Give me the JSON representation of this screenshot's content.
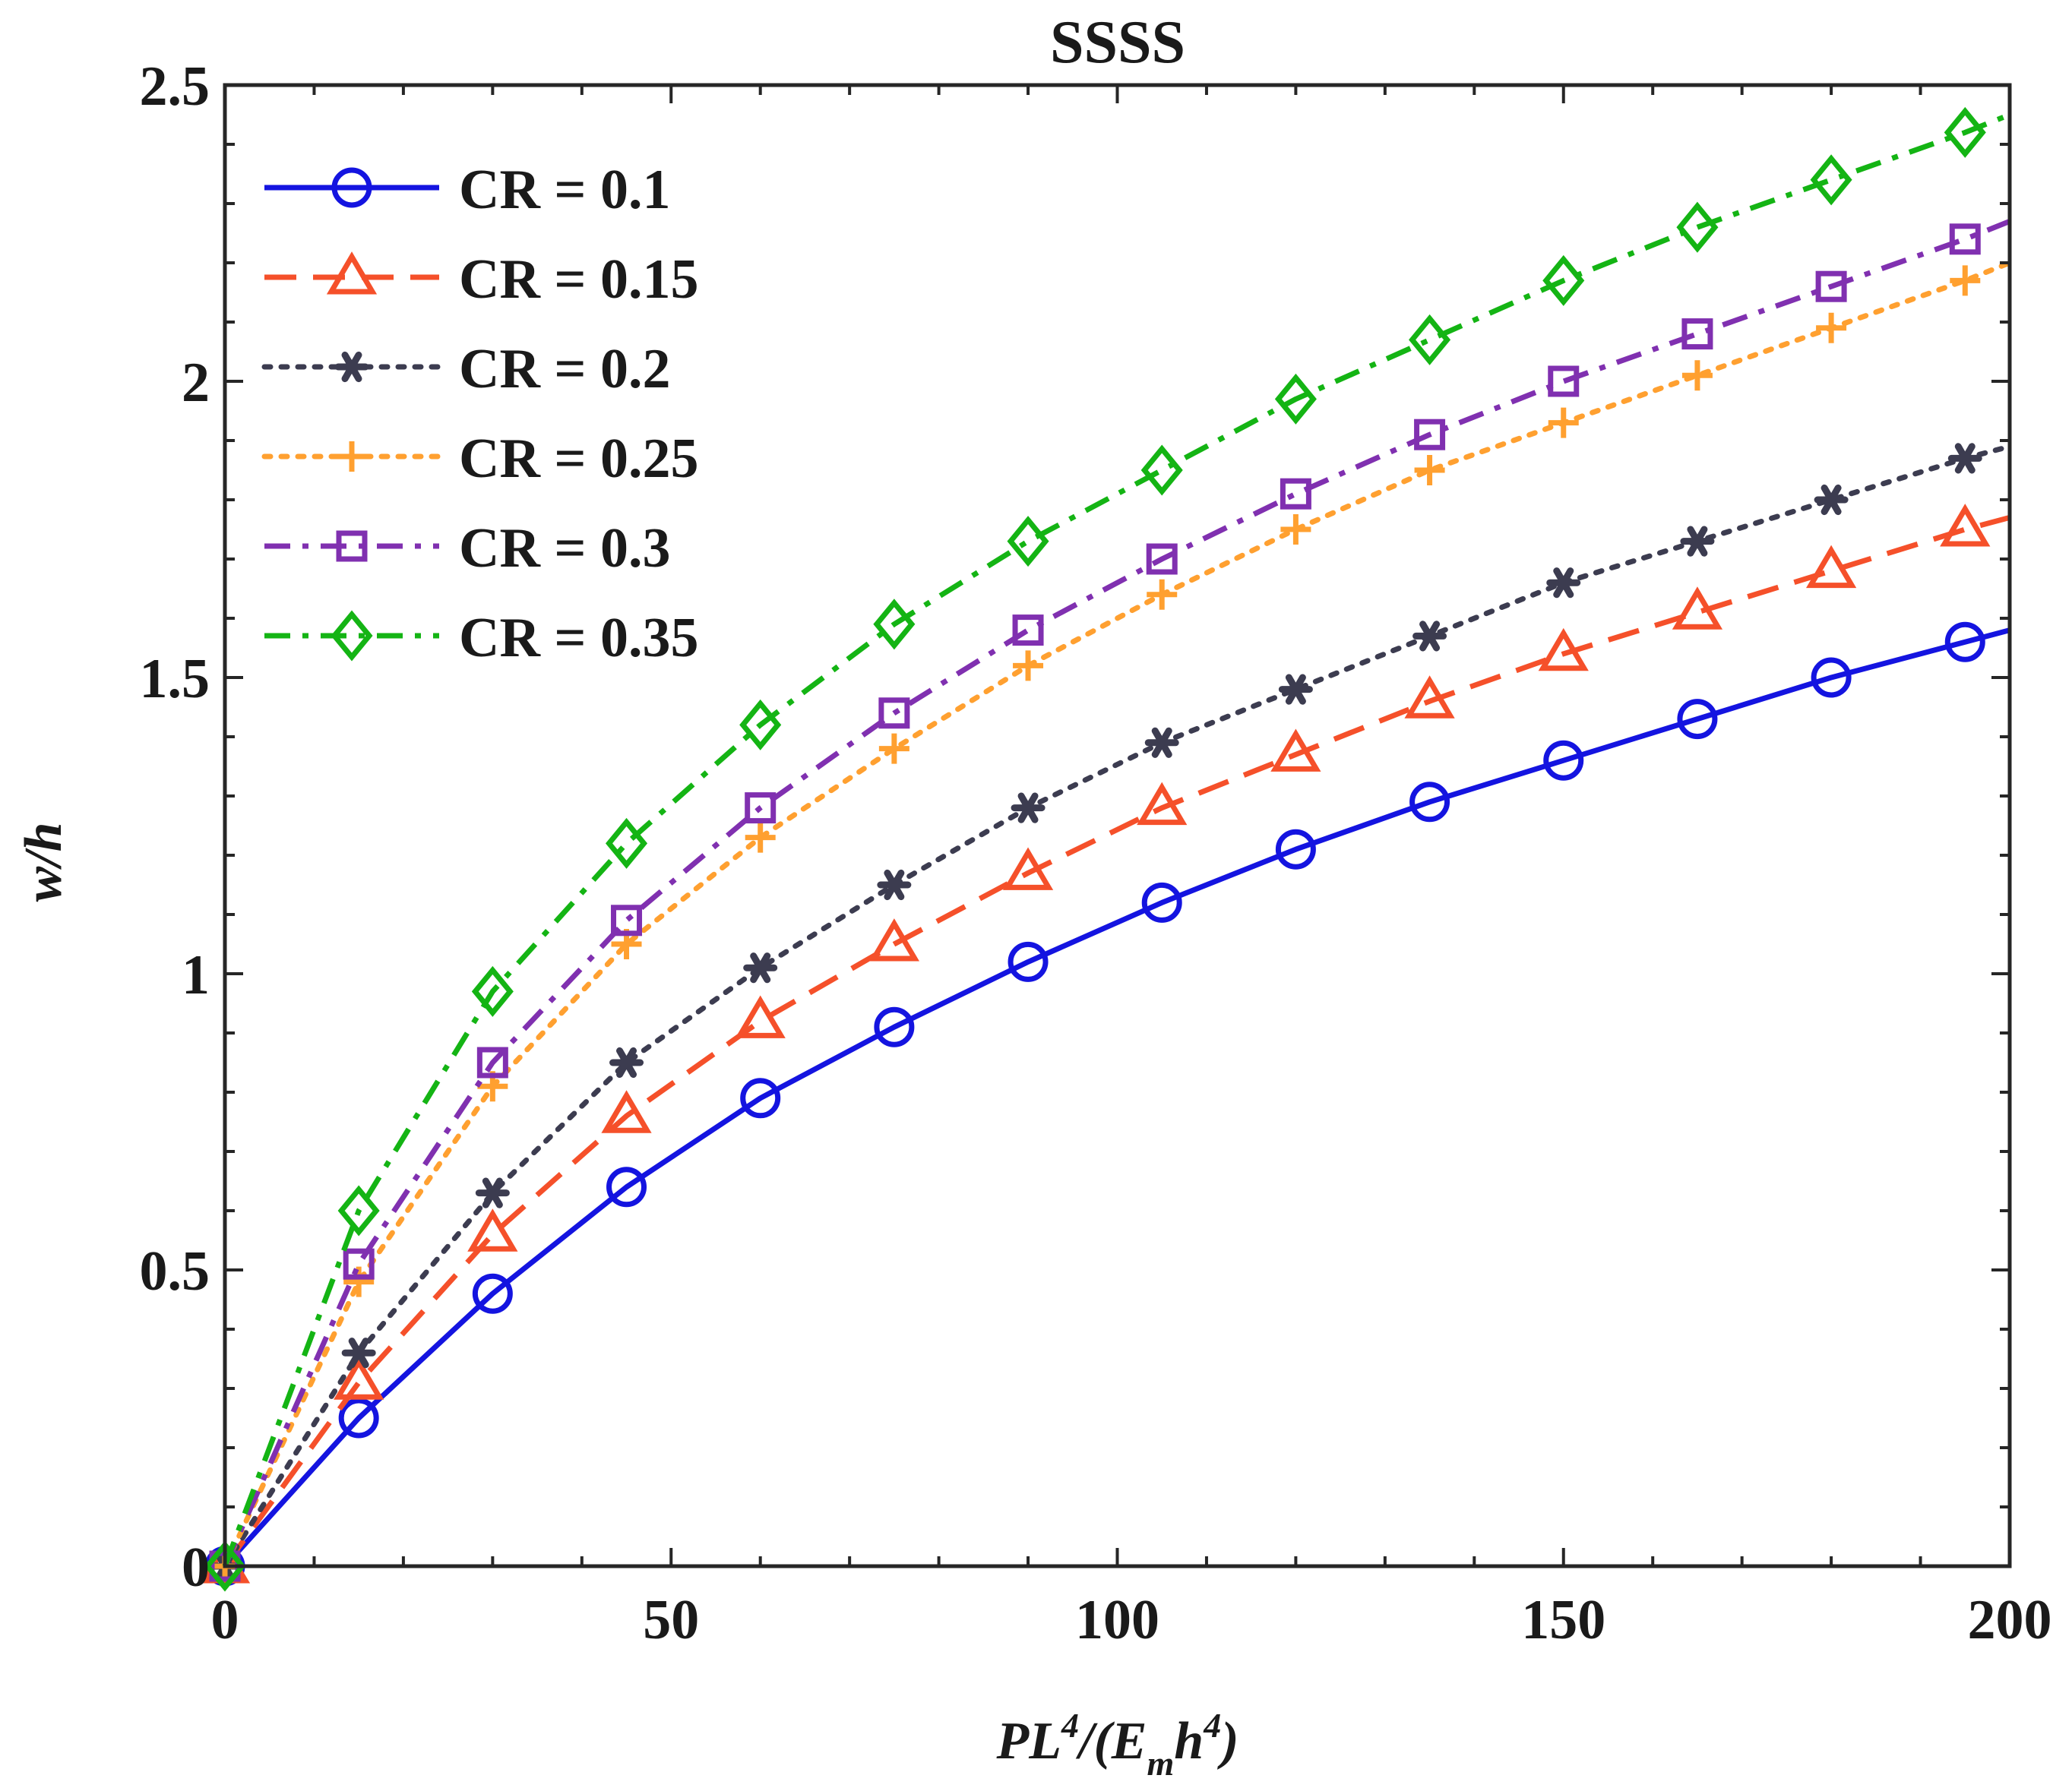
{
  "chart_data": {
    "type": "line",
    "title": "SSSS",
    "xlabel": "PL4/(Emh4)",
    "xlabel_parts": {
      "a": "PL",
      "b": "4",
      "c": "/(E",
      "d": "m",
      "e": "h",
      "f": "4",
      "g": ")"
    },
    "ylabel": "w/h",
    "xlim": [
      0,
      200
    ],
    "ylim": [
      0,
      2.5
    ],
    "xticks": [
      0,
      50,
      100,
      150,
      200
    ],
    "yticks": [
      0,
      0.5,
      1,
      1.5,
      2,
      2.5
    ],
    "xtick_labels": [
      "0",
      "50",
      "100",
      "150",
      "200"
    ],
    "ytick_labels": [
      "0",
      "0.5",
      "1",
      "1.5",
      "2",
      "2.5"
    ],
    "legend_position": "top-left",
    "x": [
      0,
      15,
      30,
      45,
      60,
      75,
      90,
      105,
      120,
      135,
      150,
      165,
      180,
      195
    ],
    "series": [
      {
        "name": "CR = 0.1",
        "color": "#1414e0",
        "marker": "circle",
        "dash": "solid",
        "values": [
          0,
          0.25,
          0.46,
          0.64,
          0.79,
          0.91,
          1.02,
          1.12,
          1.21,
          1.29,
          1.36,
          1.43,
          1.5,
          1.56
        ],
        "end": 1.58
      },
      {
        "name": "CR = 0.15",
        "color": "#f5502a",
        "marker": "triangle",
        "dash": "dashed",
        "values": [
          0,
          0.31,
          0.56,
          0.76,
          0.92,
          1.05,
          1.17,
          1.28,
          1.37,
          1.46,
          1.54,
          1.61,
          1.68,
          1.75
        ],
        "end": 1.77
      },
      {
        "name": "CR = 0.2",
        "color": "#3c3c50",
        "marker": "star",
        "dash": "dotted",
        "values": [
          0,
          0.36,
          0.63,
          0.85,
          1.01,
          1.15,
          1.28,
          1.39,
          1.48,
          1.57,
          1.66,
          1.73,
          1.8,
          1.87
        ],
        "end": 1.89
      },
      {
        "name": "CR = 0.25",
        "color": "#ffa030",
        "marker": "plus",
        "dash": "dotted",
        "values": [
          0,
          0.48,
          0.81,
          1.05,
          1.23,
          1.38,
          1.52,
          1.64,
          1.75,
          1.85,
          1.93,
          2.01,
          2.09,
          2.17
        ],
        "end": 2.2
      },
      {
        "name": "CR = 0.3",
        "color": "#8030b0",
        "marker": "square",
        "dash": "dashdot",
        "values": [
          0,
          0.51,
          0.85,
          1.09,
          1.28,
          1.44,
          1.58,
          1.7,
          1.81,
          1.91,
          2.0,
          2.08,
          2.16,
          2.24
        ],
        "end": 2.27
      },
      {
        "name": "CR = 0.35",
        "color": "#14b414",
        "marker": "diamond",
        "dash": "dashdot",
        "values": [
          0,
          0.6,
          0.97,
          1.22,
          1.42,
          1.59,
          1.73,
          1.85,
          1.97,
          2.07,
          2.17,
          2.26,
          2.34,
          2.42
        ],
        "end": 2.45
      }
    ]
  }
}
